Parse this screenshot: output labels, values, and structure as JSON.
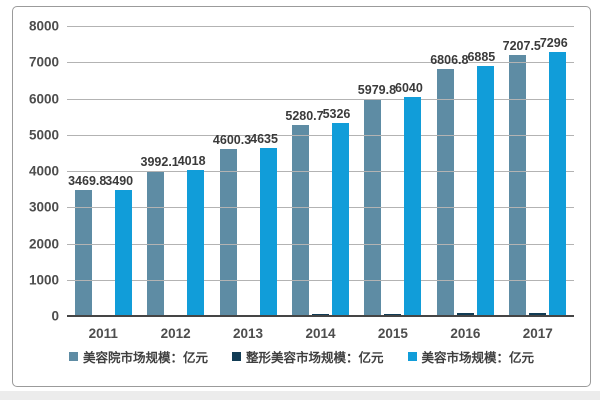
{
  "frame": {
    "border_color": "#9b9b9b",
    "background": "#ffffff",
    "bottom_strip_color": "#ececec"
  },
  "chart_data": {
    "type": "bar",
    "title": "",
    "xlabel": "",
    "ylabel": "",
    "categories": [
      "2011",
      "2012",
      "2013",
      "2014",
      "2015",
      "2016",
      "2017"
    ],
    "series": [
      {
        "key": "beauty-salon-market",
        "name": "美容院市场规模：亿元",
        "color": "#5e8ca4",
        "values": [
          3469.8,
          3992.1,
          4600.3,
          5280.7,
          5979.8,
          6806.8,
          7207.5
        ],
        "data_labels": [
          "3469.8",
          "3992.1",
          "4600.3",
          "5280.7",
          "5979.8",
          "6806.8",
          "7207.5"
        ],
        "labels_visible": true,
        "estimated": false
      },
      {
        "key": "plastic-surgery-market",
        "name": "整形美容市场规模：亿元",
        "color": "#123c55",
        "values": [
          20.2,
          25.9,
          34.7,
          45.3,
          60.2,
          78.2,
          88.5
        ],
        "data_labels": [],
        "labels_visible": false,
        "estimated": true
      },
      {
        "key": "beauty-market",
        "name": "美容市场规模：亿元",
        "color": "#119dd9",
        "values": [
          3490,
          4018,
          4635,
          5326,
          6040,
          6885,
          7296
        ],
        "data_labels": [
          "3490",
          "4018",
          "4635",
          "5326",
          "6040",
          "6885",
          "7296"
        ],
        "labels_visible": true,
        "estimated": false
      }
    ],
    "ylim": [
      0,
      8000
    ],
    "yticks": [
      0,
      1000,
      2000,
      3000,
      4000,
      5000,
      6000,
      7000,
      8000
    ],
    "grid": "horizontal",
    "gridline_color": "#b3b3b3",
    "axis_line_color": "#454545",
    "tick_label_color": "#4d4d4d",
    "data_label_color": "#3a3a3a",
    "legend_position": "bottom"
  }
}
